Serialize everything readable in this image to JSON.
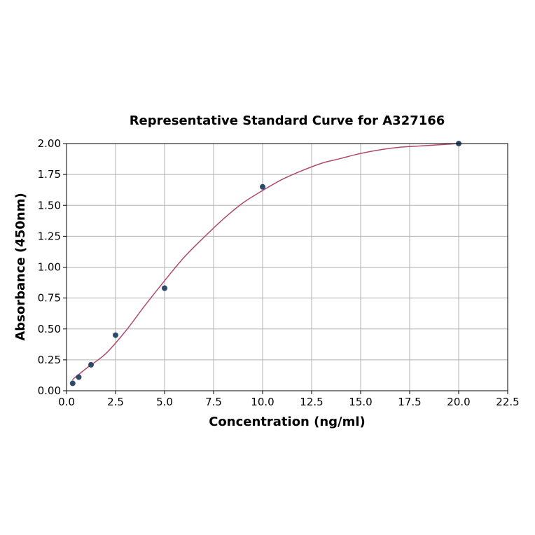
{
  "chart_data": {
    "type": "scatter",
    "title": "Representative Standard Curve for A327166",
    "xlabel": "Concentration (ng/ml)",
    "ylabel": "Absorbance (450nm)",
    "xlim": [
      0,
      22.5
    ],
    "ylim": [
      0,
      2.0
    ],
    "x_ticks": [
      "0.0",
      "2.5",
      "5.0",
      "7.5",
      "10.0",
      "12.5",
      "15.0",
      "17.5",
      "20.0",
      "22.5"
    ],
    "y_ticks": [
      "0.00",
      "0.25",
      "0.50",
      "0.75",
      "1.00",
      "1.25",
      "1.50",
      "1.75",
      "2.00"
    ],
    "grid": true,
    "series": [
      {
        "kind": "points",
        "x": [
          0.313,
          0.625,
          1.25,
          2.5,
          5.0,
          10.0,
          20.0
        ],
        "y": [
          0.06,
          0.11,
          0.21,
          0.45,
          0.83,
          1.65,
          2.0
        ]
      },
      {
        "kind": "fit-curve",
        "x": [
          0.3,
          1.0,
          2.0,
          3.0,
          4.0,
          5.0,
          6.0,
          7.0,
          8.0,
          9.0,
          10.0,
          11.0,
          12.0,
          13.0,
          14.0,
          15.0,
          16.0,
          17.0,
          18.0,
          19.0,
          20.0
        ],
        "y": [
          0.09,
          0.18,
          0.3,
          0.48,
          0.69,
          0.89,
          1.08,
          1.24,
          1.39,
          1.52,
          1.62,
          1.71,
          1.78,
          1.84,
          1.88,
          1.92,
          1.95,
          1.97,
          1.98,
          1.99,
          2.0
        ]
      }
    ],
    "colors": {
      "points": "#2e4a6b",
      "curve": "#b04a6a"
    }
  }
}
